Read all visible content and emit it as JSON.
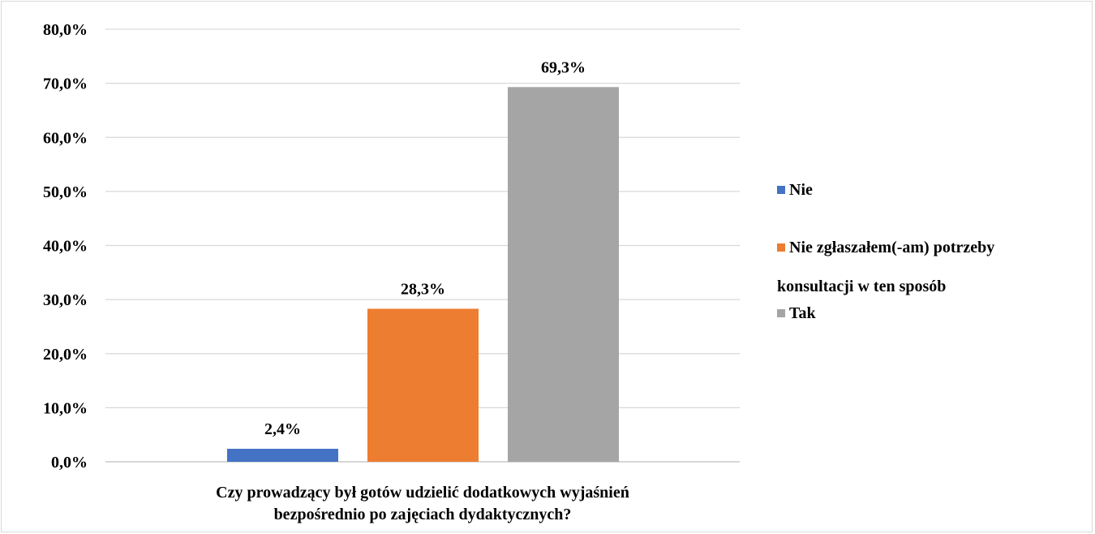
{
  "chart_data": {
    "type": "bar",
    "title": "",
    "xlabel_lines": [
      "Czy  prowadzący był gotów udzielić dodatkowych wyjaśnień",
      "bezpośrednio po zajęciach dydaktycznych?"
    ],
    "ylabel": "",
    "ylim": [
      0,
      80
    ],
    "yticks": [
      "0,0%",
      "10,0%",
      "20,0%",
      "30,0%",
      "40,0%",
      "50,0%",
      "60,0%",
      "70,0%",
      "80,0%"
    ],
    "grid": true,
    "legend_position": "right",
    "series": [
      {
        "name": "Nie",
        "legend_lines": [
          "Nie"
        ],
        "value": 2.4,
        "label": "2,4%",
        "color": "#4472C4"
      },
      {
        "name": "Nie zgłaszałem(-am) potrzeby konsultacji w ten sposób",
        "legend_lines": [
          "Nie zgłaszałem(-am) potrzeby",
          "konsultacji w ten sposób"
        ],
        "value": 28.3,
        "label": "28,3%",
        "color": "#ED7D31"
      },
      {
        "name": "Tak",
        "legend_lines": [
          "Tak"
        ],
        "value": 69.3,
        "label": "69,3%",
        "color": "#A5A5A5"
      }
    ]
  }
}
